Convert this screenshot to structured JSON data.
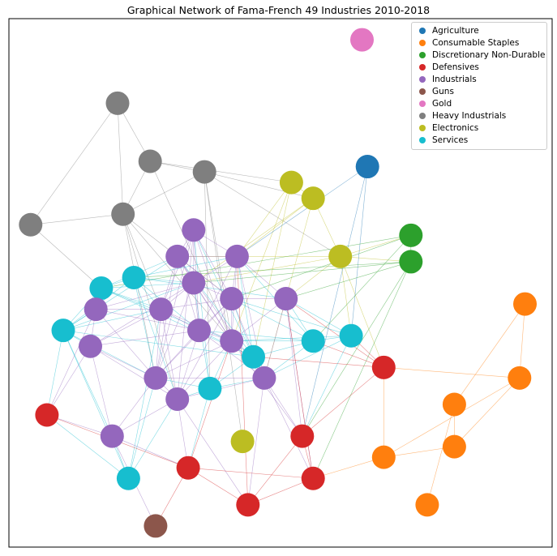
{
  "chart_data": {
    "type": "network",
    "title": "Graphical Network of Fama-French 49 Industries 2010-2018",
    "legend_position": "top-right",
    "axes_visible": false,
    "categories": [
      {
        "name": "Agriculture",
        "color": "#1f77b4"
      },
      {
        "name": "Consumable Staples",
        "color": "#ff7f0e"
      },
      {
        "name": "Discretionary Non-Durable",
        "color": "#2ca02c"
      },
      {
        "name": "Defensives",
        "color": "#d62728"
      },
      {
        "name": "Industrials",
        "color": "#9467bd"
      },
      {
        "name": "Guns",
        "color": "#8c564b"
      },
      {
        "name": "Gold",
        "color": "#e377c2"
      },
      {
        "name": "Heavy Industrials",
        "color": "#7f7f7f"
      },
      {
        "name": "Electronics",
        "color": "#bcbd22"
      },
      {
        "name": "Services",
        "color": "#17becf"
      }
    ],
    "nodes": [
      {
        "id": 0,
        "category": "Agriculture",
        "x": 0.66,
        "y": 0.72
      },
      {
        "id": 1,
        "category": "Gold",
        "x": 0.65,
        "y": 0.96
      },
      {
        "id": 2,
        "category": "Consumable Staples",
        "x": 0.95,
        "y": 0.46
      },
      {
        "id": 3,
        "category": "Consumable Staples",
        "x": 0.94,
        "y": 0.32
      },
      {
        "id": 4,
        "category": "Consumable Staples",
        "x": 0.82,
        "y": 0.27
      },
      {
        "id": 5,
        "category": "Consumable Staples",
        "x": 0.82,
        "y": 0.19
      },
      {
        "id": 6,
        "category": "Consumable Staples",
        "x": 0.69,
        "y": 0.17
      },
      {
        "id": 7,
        "category": "Consumable Staples",
        "x": 0.77,
        "y": 0.08
      },
      {
        "id": 8,
        "category": "Discretionary Non-Durable",
        "x": 0.74,
        "y": 0.59
      },
      {
        "id": 9,
        "category": "Discretionary Non-Durable",
        "x": 0.74,
        "y": 0.54
      },
      {
        "id": 10,
        "category": "Heavy Industrials",
        "x": 0.2,
        "y": 0.84
      },
      {
        "id": 11,
        "category": "Heavy Industrials",
        "x": 0.26,
        "y": 0.73
      },
      {
        "id": 12,
        "category": "Heavy Industrials",
        "x": 0.36,
        "y": 0.71
      },
      {
        "id": 13,
        "category": "Heavy Industrials",
        "x": 0.21,
        "y": 0.63
      },
      {
        "id": 14,
        "category": "Heavy Industrials",
        "x": 0.04,
        "y": 0.61
      },
      {
        "id": 15,
        "category": "Electronics",
        "x": 0.52,
        "y": 0.69
      },
      {
        "id": 16,
        "category": "Electronics",
        "x": 0.56,
        "y": 0.66
      },
      {
        "id": 17,
        "category": "Electronics",
        "x": 0.61,
        "y": 0.55
      },
      {
        "id": 18,
        "category": "Electronics",
        "x": 0.43,
        "y": 0.2
      },
      {
        "id": 19,
        "category": "Services",
        "x": 0.17,
        "y": 0.49
      },
      {
        "id": 20,
        "category": "Services",
        "x": 0.23,
        "y": 0.51
      },
      {
        "id": 21,
        "category": "Services",
        "x": 0.1,
        "y": 0.41
      },
      {
        "id": 22,
        "category": "Services",
        "x": 0.56,
        "y": 0.39
      },
      {
        "id": 23,
        "category": "Services",
        "x": 0.63,
        "y": 0.4
      },
      {
        "id": 24,
        "category": "Services",
        "x": 0.45,
        "y": 0.36
      },
      {
        "id": 25,
        "category": "Services",
        "x": 0.37,
        "y": 0.3
      },
      {
        "id": 26,
        "category": "Services",
        "x": 0.22,
        "y": 0.13
      },
      {
        "id": 27,
        "category": "Industrials",
        "x": 0.34,
        "y": 0.6
      },
      {
        "id": 28,
        "category": "Industrials",
        "x": 0.31,
        "y": 0.55
      },
      {
        "id": 29,
        "category": "Industrials",
        "x": 0.42,
        "y": 0.55
      },
      {
        "id": 30,
        "category": "Industrials",
        "x": 0.34,
        "y": 0.5
      },
      {
        "id": 31,
        "category": "Industrials",
        "x": 0.41,
        "y": 0.47
      },
      {
        "id": 32,
        "category": "Industrials",
        "x": 0.51,
        "y": 0.47
      },
      {
        "id": 33,
        "category": "Industrials",
        "x": 0.16,
        "y": 0.45
      },
      {
        "id": 34,
        "category": "Industrials",
        "x": 0.28,
        "y": 0.45
      },
      {
        "id": 35,
        "category": "Industrials",
        "x": 0.35,
        "y": 0.41
      },
      {
        "id": 36,
        "category": "Industrials",
        "x": 0.41,
        "y": 0.39
      },
      {
        "id": 37,
        "category": "Industrials",
        "x": 0.15,
        "y": 0.38
      },
      {
        "id": 38,
        "category": "Industrials",
        "x": 0.27,
        "y": 0.32
      },
      {
        "id": 39,
        "category": "Industrials",
        "x": 0.47,
        "y": 0.32
      },
      {
        "id": 40,
        "category": "Industrials",
        "x": 0.31,
        "y": 0.28
      },
      {
        "id": 41,
        "category": "Industrials",
        "x": 0.19,
        "y": 0.21
      },
      {
        "id": 42,
        "category": "Defensives",
        "x": 0.69,
        "y": 0.34
      },
      {
        "id": 43,
        "category": "Defensives",
        "x": 0.07,
        "y": 0.25
      },
      {
        "id": 44,
        "category": "Defensives",
        "x": 0.54,
        "y": 0.21
      },
      {
        "id": 45,
        "category": "Defensives",
        "x": 0.33,
        "y": 0.15
      },
      {
        "id": 46,
        "category": "Defensives",
        "x": 0.56,
        "y": 0.13
      },
      {
        "id": 47,
        "category": "Defensives",
        "x": 0.44,
        "y": 0.08
      },
      {
        "id": 48,
        "category": "Guns",
        "x": 0.27,
        "y": 0.04
      }
    ],
    "edges": [
      [
        10,
        11
      ],
      [
        10,
        13
      ],
      [
        10,
        14
      ],
      [
        11,
        12
      ],
      [
        11,
        13
      ],
      [
        12,
        13
      ],
      [
        12,
        18
      ],
      [
        12,
        25
      ],
      [
        12,
        36
      ],
      [
        13,
        14
      ],
      [
        13,
        31
      ],
      [
        13,
        38
      ],
      [
        13,
        40
      ],
      [
        13,
        34
      ],
      [
        14,
        19
      ],
      [
        11,
        15
      ],
      [
        11,
        36
      ],
      [
        12,
        16
      ],
      [
        12,
        17
      ],
      [
        13,
        36
      ],
      [
        15,
        16
      ],
      [
        15,
        29
      ],
      [
        15,
        36
      ],
      [
        15,
        24
      ],
      [
        16,
        39
      ],
      [
        16,
        17
      ],
      [
        16,
        30
      ],
      [
        16,
        29
      ],
      [
        17,
        23
      ],
      [
        17,
        32
      ],
      [
        17,
        30
      ],
      [
        17,
        28
      ],
      [
        17,
        9
      ],
      [
        17,
        8
      ],
      [
        17,
        42
      ],
      [
        0,
        23
      ],
      [
        0,
        29
      ],
      [
        0,
        44
      ],
      [
        8,
        9
      ],
      [
        8,
        22
      ],
      [
        8,
        31
      ],
      [
        8,
        19
      ],
      [
        9,
        30
      ],
      [
        9,
        32
      ],
      [
        9,
        44
      ],
      [
        9,
        46
      ],
      [
        9,
        20
      ],
      [
        2,
        3
      ],
      [
        2,
        4
      ],
      [
        3,
        42
      ],
      [
        3,
        6
      ],
      [
        3,
        5
      ],
      [
        4,
        5
      ],
      [
        4,
        7
      ],
      [
        5,
        6
      ],
      [
        6,
        42
      ],
      [
        6,
        46
      ],
      [
        42,
        22
      ],
      [
        42,
        23
      ],
      [
        42,
        24
      ],
      [
        42,
        44
      ],
      [
        42,
        32
      ],
      [
        19,
        20
      ],
      [
        19,
        21
      ],
      [
        19,
        33
      ],
      [
        19,
        34
      ],
      [
        19,
        30
      ],
      [
        19,
        36
      ],
      [
        19,
        28
      ],
      [
        19,
        24
      ],
      [
        20,
        21
      ],
      [
        20,
        34
      ],
      [
        20,
        35
      ],
      [
        20,
        30
      ],
      [
        20,
        29
      ],
      [
        20,
        32
      ],
      [
        20,
        38
      ],
      [
        20,
        40
      ],
      [
        21,
        33
      ],
      [
        21,
        37
      ],
      [
        21,
        34
      ],
      [
        21,
        28
      ],
      [
        21,
        30
      ],
      [
        21,
        38
      ],
      [
        21,
        24
      ],
      [
        21,
        26
      ],
      [
        21,
        41
      ],
      [
        21,
        43
      ],
      [
        22,
        23
      ],
      [
        22,
        29
      ],
      [
        22,
        31
      ],
      [
        22,
        32
      ],
      [
        22,
        36
      ],
      [
        22,
        24
      ],
      [
        22,
        39
      ],
      [
        22,
        35
      ],
      [
        23,
        32
      ],
      [
        23,
        31
      ],
      [
        23,
        36
      ],
      [
        23,
        44
      ],
      [
        23,
        39
      ],
      [
        24,
        25
      ],
      [
        24,
        35
      ],
      [
        24,
        36
      ],
      [
        24,
        31
      ],
      [
        24,
        29
      ],
      [
        24,
        39
      ],
      [
        24,
        27
      ],
      [
        24,
        28
      ],
      [
        25,
        36
      ],
      [
        25,
        38
      ],
      [
        25,
        39
      ],
      [
        25,
        27
      ],
      [
        25,
        45
      ],
      [
        25,
        40
      ],
      [
        25,
        30
      ],
      [
        26,
        40
      ],
      [
        26,
        41
      ],
      [
        26,
        38
      ],
      [
        26,
        43
      ],
      [
        26,
        34
      ],
      [
        27,
        28
      ],
      [
        27,
        30
      ],
      [
        27,
        31
      ],
      [
        27,
        35
      ],
      [
        27,
        36
      ],
      [
        27,
        38
      ],
      [
        27,
        40
      ],
      [
        27,
        29
      ],
      [
        27,
        34
      ],
      [
        28,
        29
      ],
      [
        28,
        30
      ],
      [
        28,
        34
      ],
      [
        28,
        35
      ],
      [
        28,
        31
      ],
      [
        28,
        38
      ],
      [
        28,
        36
      ],
      [
        28,
        39
      ],
      [
        29,
        30
      ],
      [
        29,
        31
      ],
      [
        29,
        32
      ],
      [
        29,
        36
      ],
      [
        29,
        39
      ],
      [
        29,
        35
      ],
      [
        30,
        31
      ],
      [
        30,
        34
      ],
      [
        30,
        35
      ],
      [
        30,
        36
      ],
      [
        30,
        33
      ],
      [
        30,
        38
      ],
      [
        30,
        37
      ],
      [
        31,
        32
      ],
      [
        31,
        35
      ],
      [
        31,
        36
      ],
      [
        31,
        39
      ],
      [
        31,
        40
      ],
      [
        31,
        38
      ],
      [
        31,
        34
      ],
      [
        32,
        36
      ],
      [
        32,
        39
      ],
      [
        32,
        44
      ],
      [
        32,
        46
      ],
      [
        33,
        34
      ],
      [
        33,
        37
      ],
      [
        33,
        43
      ],
      [
        33,
        35
      ],
      [
        33,
        38
      ],
      [
        34,
        35
      ],
      [
        34,
        37
      ],
      [
        34,
        38
      ],
      [
        34,
        40
      ],
      [
        34,
        36
      ],
      [
        35,
        36
      ],
      [
        35,
        38
      ],
      [
        35,
        39
      ],
      [
        35,
        40
      ],
      [
        35,
        37
      ],
      [
        36,
        39
      ],
      [
        36,
        40
      ],
      [
        36,
        38
      ],
      [
        36,
        44
      ],
      [
        37,
        38
      ],
      [
        37,
        40
      ],
      [
        37,
        41
      ],
      [
        37,
        43
      ],
      [
        38,
        40
      ],
      [
        38,
        41
      ],
      [
        38,
        39
      ],
      [
        39,
        40
      ],
      [
        39,
        44
      ],
      [
        39,
        46
      ],
      [
        39,
        47
      ],
      [
        40,
        41
      ],
      [
        40,
        45
      ],
      [
        40,
        47
      ],
      [
        41,
        43
      ],
      [
        41,
        45
      ],
      [
        41,
        48
      ],
      [
        45,
        47
      ],
      [
        45,
        48
      ],
      [
        45,
        46
      ],
      [
        46,
        47
      ],
      [
        44,
        46
      ],
      [
        44,
        47
      ],
      [
        43,
        45
      ],
      [
        45,
        36
      ],
      [
        47,
        29
      ],
      [
        46,
        32
      ]
    ]
  }
}
